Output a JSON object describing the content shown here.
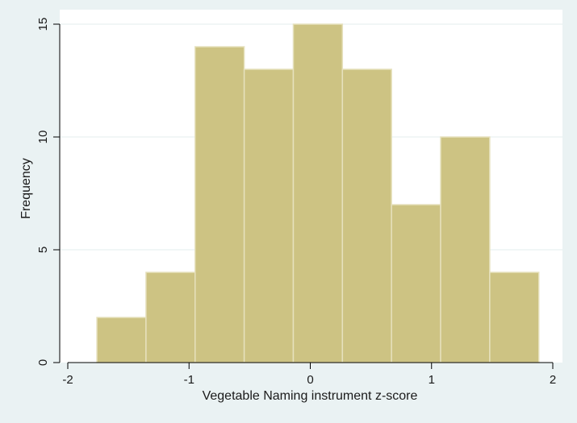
{
  "chart_data": {
    "type": "bar",
    "title": "",
    "xlabel": "Vegetable Naming instrument z-score",
    "ylabel": "Frequency",
    "xlim": [
      -2.1,
      2.1
    ],
    "ylim": [
      0,
      15
    ],
    "x_ticks": [
      -2,
      -1,
      0,
      1,
      2
    ],
    "y_ticks": [
      0,
      5,
      10,
      15
    ],
    "x_tick_labels": [
      "-2",
      "-1",
      "0",
      "1",
      "2"
    ],
    "y_tick_labels": [
      "0",
      "5",
      "10",
      "15"
    ],
    "grid": true,
    "bins": [
      {
        "x_start": -1.76,
        "x_end": -1.355,
        "count": 2
      },
      {
        "x_start": -1.355,
        "x_end": -0.95,
        "count": 4
      },
      {
        "x_start": -0.95,
        "x_end": -0.545,
        "count": 14
      },
      {
        "x_start": -0.545,
        "x_end": -0.14,
        "count": 13
      },
      {
        "x_start": -0.14,
        "x_end": 0.265,
        "count": 15
      },
      {
        "x_start": 0.265,
        "x_end": 0.67,
        "count": 13
      },
      {
        "x_start": 0.67,
        "x_end": 1.075,
        "count": 7
      },
      {
        "x_start": 1.075,
        "x_end": 1.48,
        "count": 10
      },
      {
        "x_start": 1.48,
        "x_end": 1.885,
        "count": 4
      }
    ],
    "colors": {
      "bar_fill": "#cdc383",
      "bar_stroke": "#e6e1bd",
      "background": "#eaf2f3",
      "plot_background": "#ffffff",
      "grid": "#e3ecee",
      "axis": "#000000"
    }
  }
}
